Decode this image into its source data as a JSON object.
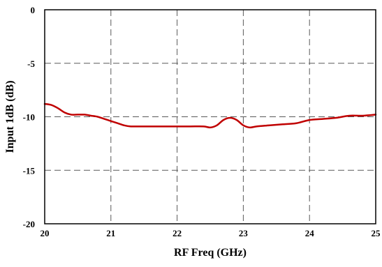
{
  "chart_data": {
    "type": "line",
    "title": "",
    "xlabel": "RF Freq (GHz)",
    "ylabel": "Input 1dB (dB)",
    "xlim": [
      20,
      25
    ],
    "ylim": [
      -20,
      0
    ],
    "x_ticks": [
      20,
      21,
      22,
      23,
      24,
      25
    ],
    "y_ticks": [
      0,
      -5,
      -10,
      -15,
      -20
    ],
    "grid": true,
    "legend": "none",
    "series": [
      {
        "color": "#C00000",
        "x": [
          20.0,
          20.1,
          20.2,
          20.3,
          20.4,
          20.5,
          20.6,
          20.7,
          20.8,
          20.9,
          21.0,
          21.1,
          21.2,
          21.3,
          21.4,
          21.6,
          21.8,
          22.0,
          22.2,
          22.4,
          22.5,
          22.6,
          22.7,
          22.8,
          22.9,
          23.0,
          23.1,
          23.2,
          23.4,
          23.6,
          23.8,
          24.0,
          24.2,
          24.4,
          24.6,
          24.8,
          25.0
        ],
        "y": [
          -8.8,
          -8.9,
          -9.2,
          -9.6,
          -9.8,
          -9.8,
          -9.8,
          -9.9,
          -10.0,
          -10.2,
          -10.4,
          -10.6,
          -10.8,
          -10.9,
          -10.9,
          -10.9,
          -10.9,
          -10.9,
          -10.9,
          -10.9,
          -11.0,
          -10.8,
          -10.3,
          -10.1,
          -10.3,
          -10.8,
          -11.0,
          -10.9,
          -10.8,
          -10.7,
          -10.6,
          -10.3,
          -10.2,
          -10.1,
          -9.9,
          -9.9,
          -9.8
        ]
      }
    ]
  }
}
